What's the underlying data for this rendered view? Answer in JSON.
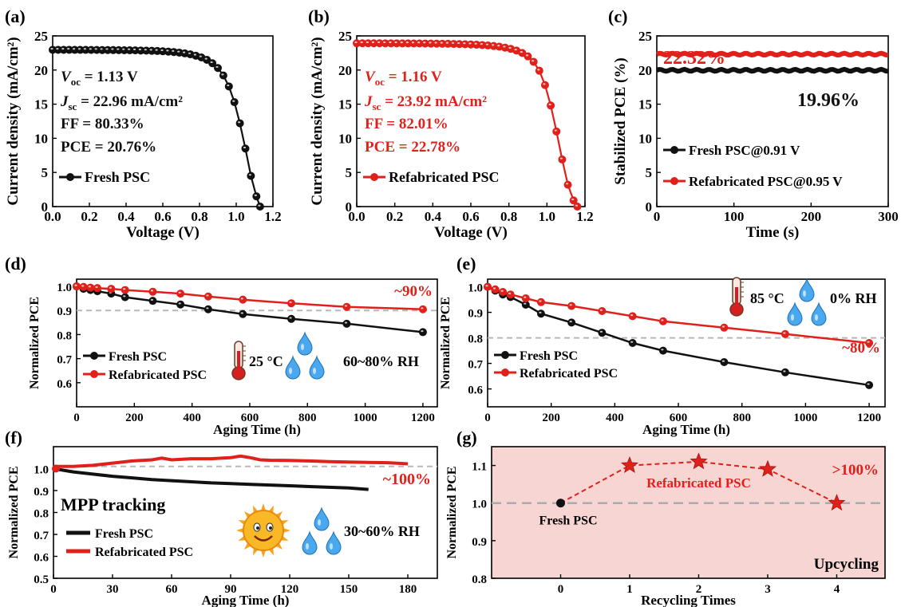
{
  "colors": {
    "black": "#111111",
    "red": "#e0201b",
    "grid": "#b8b8b8",
    "upcycle_bg": "#f7d5d3"
  },
  "chart_data": [
    {
      "id": "a",
      "panel_label": "(a)",
      "type": "line",
      "xlabel": "Voltage (V)",
      "ylabel": "Current density (mA/cm²)",
      "xlim": [
        0,
        1.2
      ],
      "ylim": [
        0,
        25
      ],
      "xticks": [
        "0.0",
        "0.2",
        "0.4",
        "0.6",
        "0.8",
        "1.0",
        "1.2"
      ],
      "yticks": [
        "0",
        "5",
        "10",
        "15",
        "20",
        "25"
      ],
      "series": [
        {
          "name": "Fresh PSC",
          "color": "#111111",
          "x": [
            0,
            0.03,
            0.06,
            0.09,
            0.12,
            0.15,
            0.18,
            0.21,
            0.24,
            0.27,
            0.3,
            0.33,
            0.36,
            0.39,
            0.42,
            0.45,
            0.48,
            0.51,
            0.54,
            0.57,
            0.6,
            0.63,
            0.66,
            0.69,
            0.72,
            0.75,
            0.78,
            0.81,
            0.84,
            0.87,
            0.9,
            0.93,
            0.96,
            0.99,
            1.02,
            1.05,
            1.08,
            1.11,
            1.13
          ],
          "y": [
            22.96,
            22.96,
            22.96,
            22.96,
            22.95,
            22.95,
            22.95,
            22.94,
            22.94,
            22.93,
            22.93,
            22.92,
            22.91,
            22.9,
            22.89,
            22.88,
            22.86,
            22.84,
            22.82,
            22.79,
            22.75,
            22.7,
            22.64,
            22.55,
            22.44,
            22.3,
            22.1,
            21.85,
            21.5,
            21.0,
            20.3,
            19.2,
            17.6,
            15.3,
            12.2,
            8.5,
            4.5,
            1.5,
            0
          ]
        }
      ],
      "annotations": [
        {
          "sym": "V",
          "sub": "oc",
          "rest": " = 1.13 V"
        },
        {
          "sym": "J",
          "sub": "sc",
          "rest": " = 22.96 mA/cm²"
        },
        {
          "text": "FF = 80.33%"
        },
        {
          "text": "PCE = 20.76%"
        }
      ]
    },
    {
      "id": "b",
      "panel_label": "(b)",
      "type": "line",
      "xlabel": "Voltage (V)",
      "ylabel": "Current density (mA/cm²)",
      "xlim": [
        0,
        1.2
      ],
      "ylim": [
        0,
        25
      ],
      "xticks": [
        "0.0",
        "0.2",
        "0.4",
        "0.6",
        "0.8",
        "1.0",
        "1.2"
      ],
      "yticks": [
        "0",
        "5",
        "10",
        "15",
        "20",
        "25"
      ],
      "series": [
        {
          "name": "Refabricated PSC",
          "color": "#e0201b",
          "x": [
            0,
            0.03,
            0.06,
            0.09,
            0.12,
            0.15,
            0.18,
            0.21,
            0.24,
            0.27,
            0.3,
            0.33,
            0.36,
            0.39,
            0.42,
            0.45,
            0.48,
            0.51,
            0.54,
            0.57,
            0.6,
            0.63,
            0.66,
            0.69,
            0.72,
            0.75,
            0.78,
            0.81,
            0.84,
            0.87,
            0.9,
            0.93,
            0.96,
            0.99,
            1.02,
            1.05,
            1.08,
            1.11,
            1.14,
            1.16
          ],
          "y": [
            23.92,
            23.92,
            23.92,
            23.92,
            23.92,
            23.91,
            23.91,
            23.91,
            23.9,
            23.9,
            23.89,
            23.89,
            23.88,
            23.87,
            23.86,
            23.85,
            23.84,
            23.82,
            23.8,
            23.78,
            23.75,
            23.71,
            23.66,
            23.6,
            23.52,
            23.42,
            23.28,
            23.1,
            22.85,
            22.5,
            22.0,
            21.2,
            19.9,
            17.8,
            14.8,
            11.0,
            6.9,
            3.2,
            0.9,
            0
          ]
        }
      ],
      "annotations": [
        {
          "sym": "V",
          "sub": "oc",
          "rest": " = 1.16 V"
        },
        {
          "sym": "J",
          "sub": "sc",
          "rest": " = 23.92 mA/cm²"
        },
        {
          "text": "FF = 82.01%"
        },
        {
          "text": "PCE = 22.78%"
        }
      ]
    },
    {
      "id": "c",
      "panel_label": "(c)",
      "type": "line",
      "xlabel": "Time (s)",
      "ylabel": "Stabilized PCE (%)",
      "xlim": [
        0,
        300
      ],
      "ylim": [
        0,
        25
      ],
      "xticks": [
        "0",
        "100",
        "200",
        "300"
      ],
      "yticks": [
        "0",
        "5",
        "10",
        "15",
        "20",
        "25"
      ],
      "series": [
        {
          "name": "Fresh PSC@0.91 V",
          "color": "#111111",
          "x": [
            0,
            300
          ],
          "y": [
            19.96,
            19.96
          ]
        },
        {
          "name": "Refabricated PSC@0.95 V",
          "color": "#e0201b",
          "x": [
            0,
            300
          ],
          "y": [
            22.32,
            22.32
          ]
        }
      ],
      "value_labels": [
        "22.32%",
        "19.96%"
      ]
    },
    {
      "id": "d",
      "panel_label": "(d)",
      "type": "line",
      "xlabel": "Aging Time (h)",
      "ylabel": "Normalized PCE",
      "xlim": [
        0,
        1250
      ],
      "ylim": [
        0.5,
        1.03
      ],
      "xticks": [
        "0",
        "200",
        "400",
        "600",
        "800",
        "1000",
        "1200"
      ],
      "yticks": [
        "0.6",
        "0.7",
        "0.8",
        "0.9",
        "1.0"
      ],
      "reference_y": 0.9,
      "series": [
        {
          "name": "Fresh PSC",
          "color": "#111111",
          "x": [
            0,
            24,
            48,
            72,
            120,
            168,
            264,
            360,
            456,
            576,
            744,
            936,
            1200
          ],
          "y": [
            1.0,
            0.99,
            0.985,
            0.98,
            0.97,
            0.955,
            0.94,
            0.925,
            0.905,
            0.885,
            0.865,
            0.845,
            0.81
          ]
        },
        {
          "name": "Refabricated PSC",
          "color": "#e0201b",
          "x": [
            0,
            24,
            48,
            72,
            120,
            168,
            264,
            360,
            456,
            576,
            744,
            936,
            1200
          ],
          "y": [
            1.0,
            0.998,
            0.995,
            0.993,
            0.99,
            0.985,
            0.978,
            0.97,
            0.958,
            0.945,
            0.93,
            0.915,
            0.905
          ]
        }
      ],
      "end_label": "~90%",
      "condition": {
        "temp": "25 °C",
        "rh": "60~80% RH"
      }
    },
    {
      "id": "e",
      "panel_label": "(e)",
      "type": "line",
      "xlabel": "Aging Time (h)",
      "ylabel": "Normalized PCE",
      "xlim": [
        0,
        1250
      ],
      "ylim": [
        0.53,
        1.03
      ],
      "xticks": [
        "0",
        "200",
        "400",
        "600",
        "800",
        "1000",
        "1200"
      ],
      "yticks": [
        "0.6",
        "0.7",
        "0.8",
        "0.9",
        "1.0"
      ],
      "reference_y": 0.8,
      "series": [
        {
          "name": "Fresh PSC",
          "color": "#111111",
          "x": [
            0,
            24,
            48,
            72,
            120,
            168,
            264,
            360,
            456,
            552,
            744,
            936,
            1200
          ],
          "y": [
            1.0,
            0.985,
            0.97,
            0.96,
            0.93,
            0.895,
            0.86,
            0.82,
            0.78,
            0.75,
            0.705,
            0.665,
            0.615
          ]
        },
        {
          "name": "Refabricated PSC",
          "color": "#e0201b",
          "x": [
            0,
            24,
            48,
            72,
            120,
            168,
            264,
            360,
            456,
            552,
            744,
            936,
            1200
          ],
          "y": [
            1.0,
            0.99,
            0.98,
            0.97,
            0.955,
            0.94,
            0.925,
            0.905,
            0.885,
            0.865,
            0.84,
            0.815,
            0.78
          ]
        }
      ],
      "end_label": "~80%",
      "condition": {
        "temp": "85 °C",
        "rh": "0% RH"
      }
    },
    {
      "id": "f",
      "panel_label": "(f)",
      "type": "line",
      "xlabel": "Aging Time (h)",
      "ylabel": "Normalized PCE",
      "xlim": [
        0,
        195
      ],
      "ylim": [
        0.5,
        1.1
      ],
      "xticks": [
        "0",
        "30",
        "60",
        "90",
        "120",
        "150",
        "180"
      ],
      "yticks": [
        "0.5",
        "0.6",
        "0.7",
        "0.8",
        "0.9",
        "1.0"
      ],
      "reference_y": 1.01,
      "series": [
        {
          "name": "Fresh PSC",
          "color": "#111111",
          "x": [
            0,
            10,
            20,
            30,
            40,
            50,
            60,
            70,
            80,
            90,
            100,
            110,
            120,
            130,
            140,
            150,
            160
          ],
          "y": [
            1.0,
            0.985,
            0.975,
            0.965,
            0.958,
            0.95,
            0.945,
            0.94,
            0.935,
            0.932,
            0.928,
            0.925,
            0.922,
            0.918,
            0.915,
            0.912,
            0.905
          ]
        },
        {
          "name": "Refabricated PSC",
          "color": "#e0201b",
          "x": [
            0,
            10,
            20,
            30,
            40,
            50,
            55,
            60,
            70,
            80,
            90,
            95,
            100,
            105,
            110,
            120,
            130,
            140,
            150,
            160,
            170,
            180
          ],
          "y": [
            1.01,
            1.01,
            1.015,
            1.025,
            1.035,
            1.04,
            1.048,
            1.04,
            1.045,
            1.045,
            1.05,
            1.057,
            1.05,
            1.04,
            1.038,
            1.037,
            1.035,
            1.032,
            1.03,
            1.028,
            1.027,
            1.022
          ]
        }
      ],
      "end_label": "~100%",
      "title_text": "MPP tracking",
      "condition": {
        "rh": "30~60% RH"
      }
    },
    {
      "id": "g",
      "panel_label": "(g)",
      "type": "line",
      "xlabel": "Recycling Times",
      "ylabel": "Normalized PCE",
      "xlim": [
        -1,
        4.7
      ],
      "ylim": [
        0.8,
        1.15
      ],
      "xticks": [
        "0",
        "1",
        "2",
        "3",
        "4"
      ],
      "yticks": [
        "0.8",
        "0.9",
        "1.0",
        "1.1"
      ],
      "reference_y": 1.0,
      "series": [
        {
          "name": "Refabricated PSC",
          "color": "#e0201b",
          "x": [
            0,
            1,
            2,
            3,
            4
          ],
          "y": [
            1.0,
            1.1,
            1.11,
            1.09,
            1.0
          ]
        }
      ],
      "labels": {
        "fresh": "Fresh PSC",
        "refab": "Refabricated PSC",
        "gt100": ">100%",
        "upcycling": "Upcycling"
      }
    }
  ]
}
